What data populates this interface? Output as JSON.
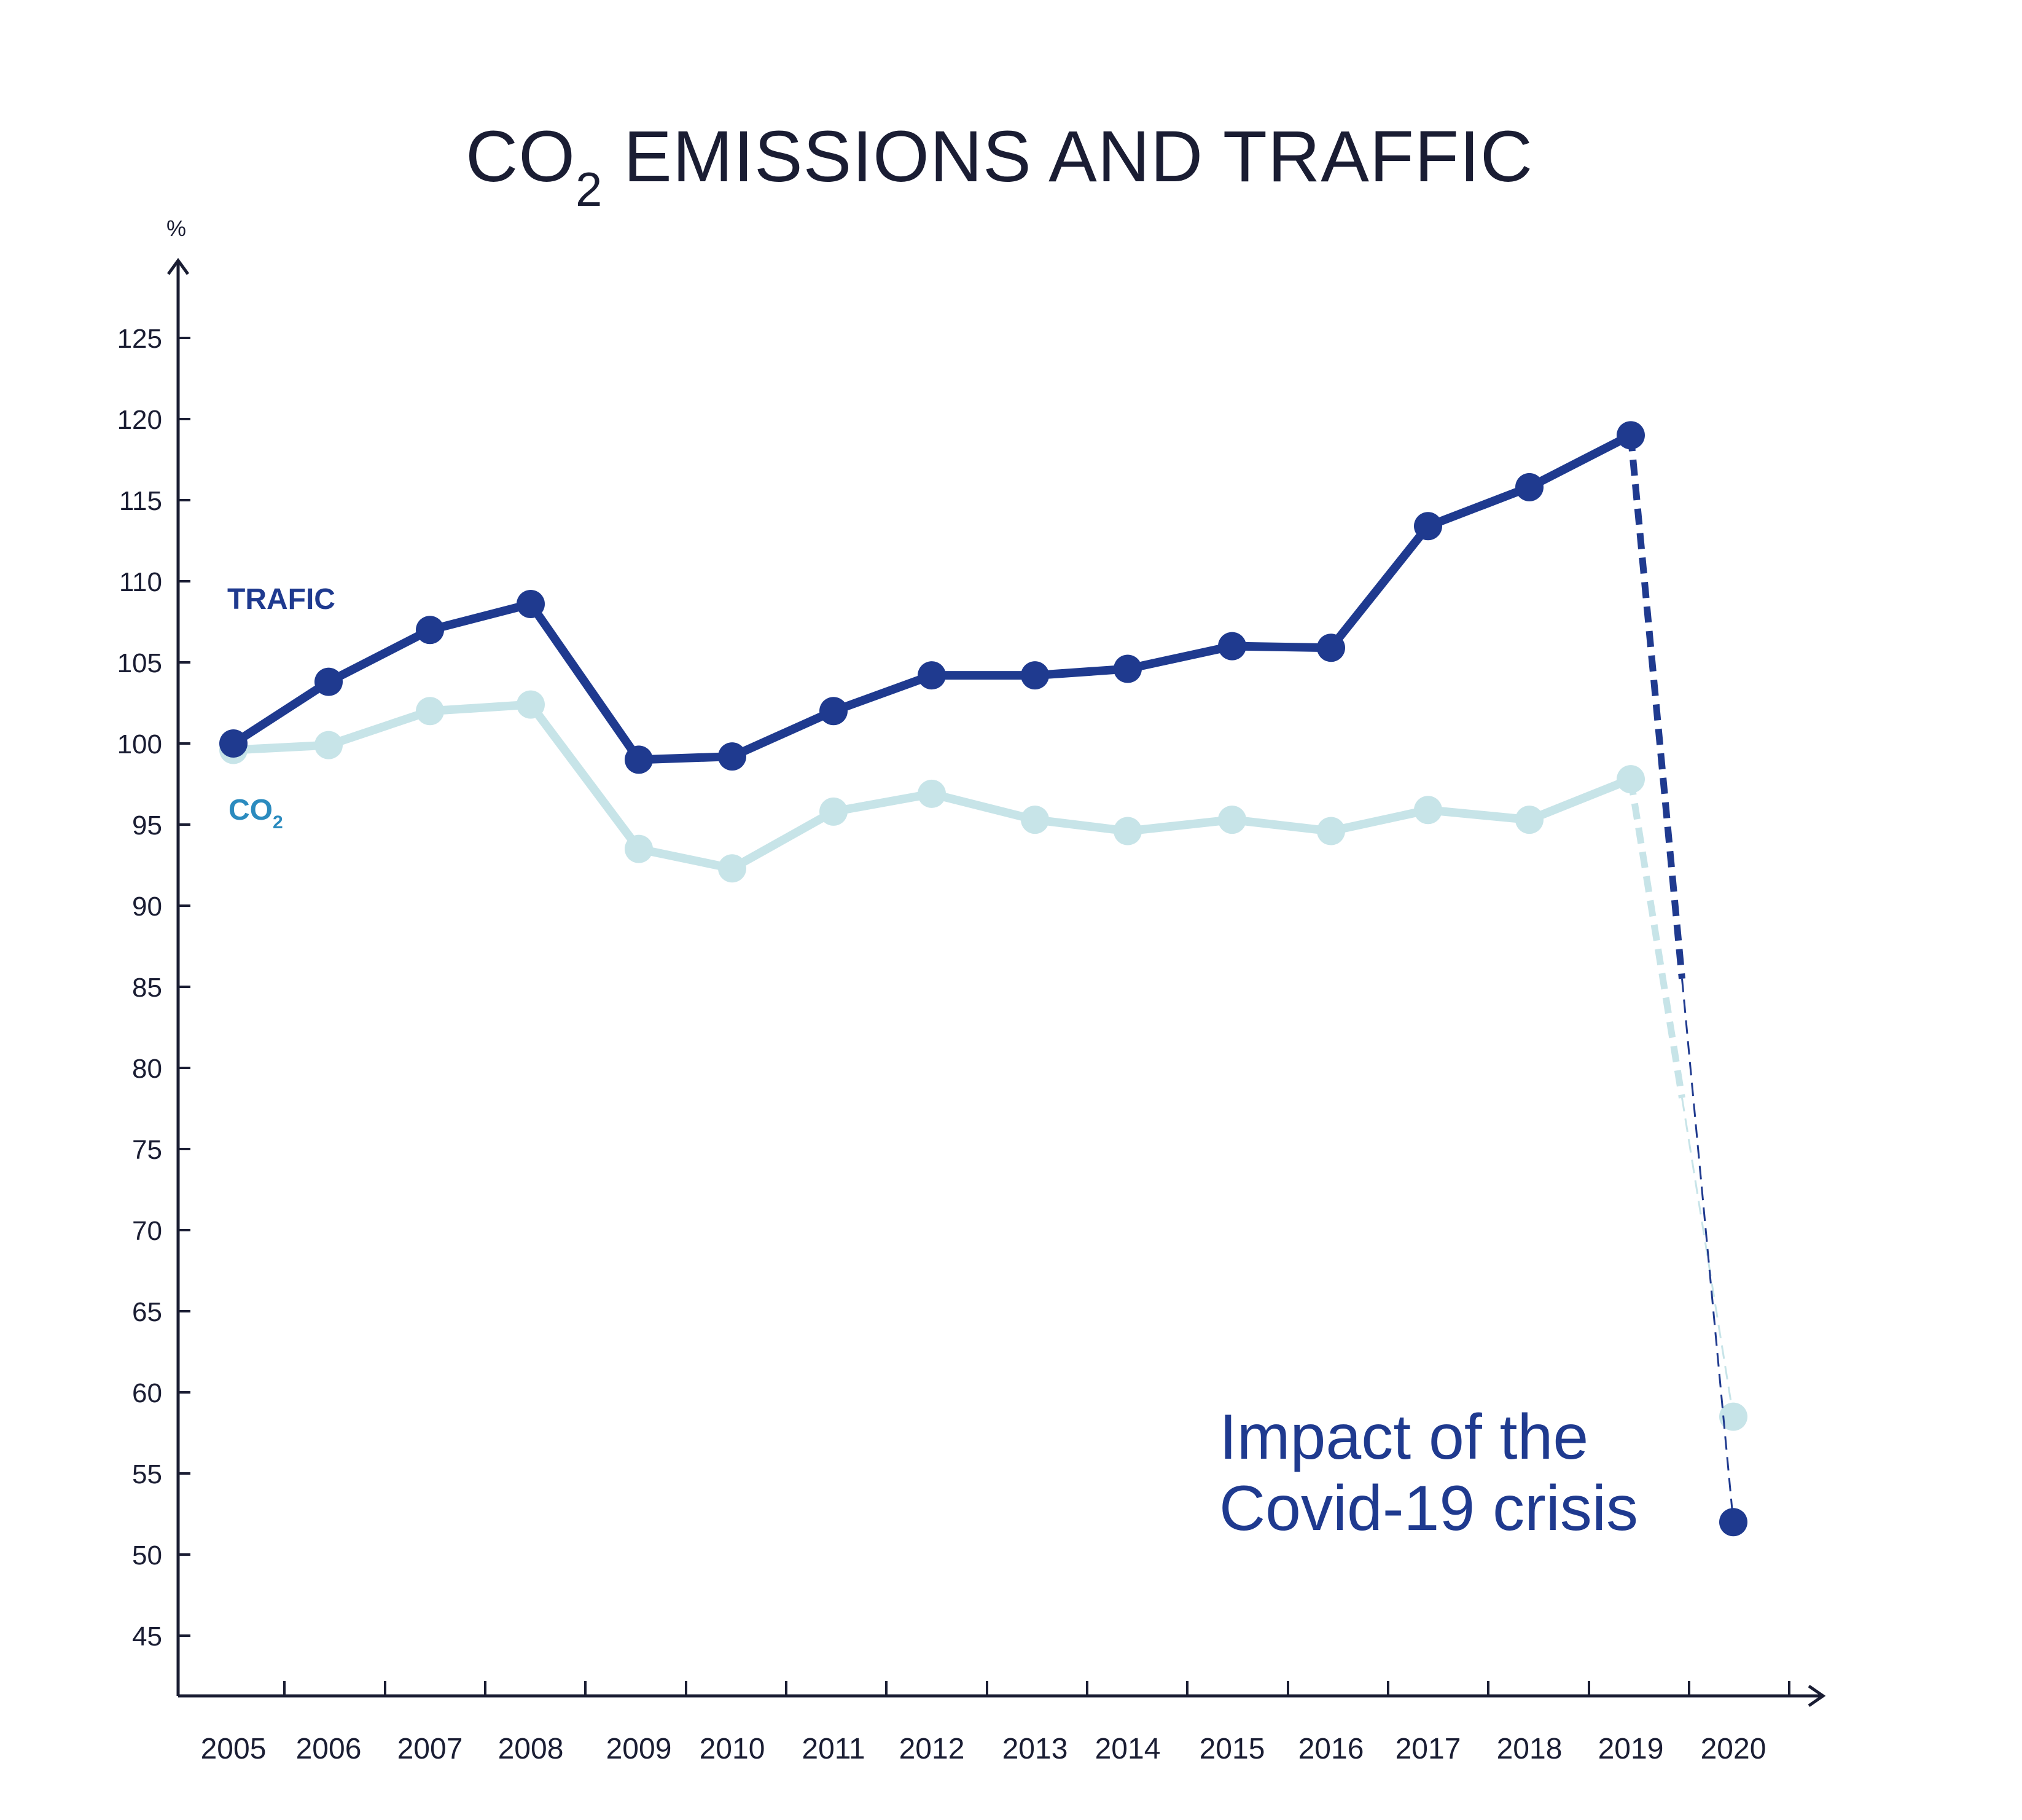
{
  "chart_data": {
    "type": "line",
    "title": {
      "main_prefix": "CO",
      "main_sub": "2",
      "main_suffix": " EMISSIONS AND TRAFFIC"
    },
    "y_unit": "%",
    "ylim": [
      40,
      128
    ],
    "y_ticks": [
      45,
      50,
      55,
      60,
      65,
      70,
      75,
      80,
      85,
      90,
      95,
      100,
      105,
      110,
      115,
      120,
      125
    ],
    "categories": [
      "2005",
      "2006",
      "2007",
      "2008",
      "2009",
      "2010",
      "2011",
      "2012",
      "2013",
      "2014",
      "2015",
      "2016",
      "2017",
      "2018",
      "2019",
      "2020"
    ],
    "series": [
      {
        "name": "TRAFIC",
        "color": "#1f3a8f",
        "values": [
          100,
          103.8,
          107,
          108.6,
          99,
          99.2,
          102,
          104.2,
          104.2,
          104.6,
          106,
          105.9,
          113.4,
          115.8,
          119,
          52
        ]
      },
      {
        "name_prefix": "CO",
        "name_sub": "2",
        "color": "#c7e4e8",
        "label_color": "#2b8bbf",
        "values": [
          99.6,
          99.9,
          102,
          102.4,
          93.5,
          92.3,
          95.8,
          96.9,
          95.3,
          94.6,
          95.3,
          94.6,
          95.9,
          95.3,
          97.8,
          58.5
        ]
      }
    ],
    "annotation": {
      "line1": "Impact of the",
      "line2": "Covid-19 crisis",
      "color": "#1f3a8f"
    },
    "grid": false,
    "legend": "inline-left"
  }
}
